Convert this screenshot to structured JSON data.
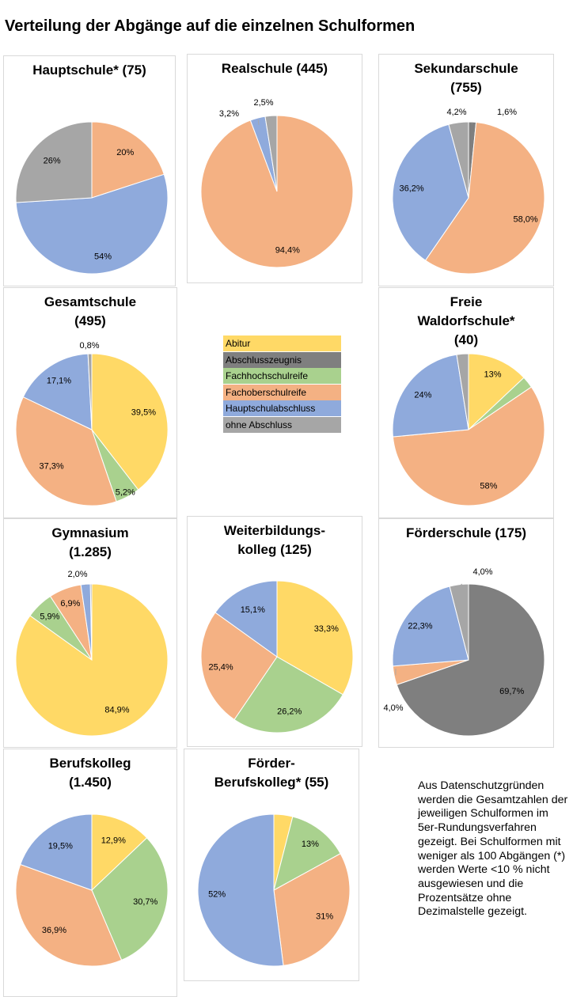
{
  "title": "Verteilung der Abgänge auf die einzelnen Schulformen",
  "colors": {
    "Abitur": "#ffd966",
    "Abschlusszeugnis": "#7f7f7f",
    "Fachhochschulreife": "#a9d18e",
    "Fachoberschulreife": "#f4b183",
    "Hauptschulabschluss": "#8faadc",
    "ohne Abschluss": "#a6a6a6"
  },
  "legend": {
    "items": [
      {
        "label": "Abitur",
        "color": "#ffd966"
      },
      {
        "label": "Abschlusszeugnis",
        "color": "#7f7f7f"
      },
      {
        "label": "Fachhochschulreife",
        "color": "#a9d18e"
      },
      {
        "label": "Fachoberschulreife",
        "color": "#f4b183"
      },
      {
        "label": "Hauptschulabschluss",
        "color": "#8faadc"
      },
      {
        "label": "ohne Abschluss",
        "color": "#a6a6a6"
      }
    ]
  },
  "note": "Aus Datenschutzgründen werden die Gesamtzahlen der jeweiligen Schulformen im 5er-Rundungsverfahren gezeigt. Bei Schulformen mit weniger als 100 Abgängen (*) werden Werte <10 % nicht ausgewiesen und die Prozentsätze ohne Dezimalstelle gezeigt.",
  "chart_data": [
    {
      "type": "pie",
      "title_lines": [
        "Hauptschule*  (75)"
      ],
      "slices": [
        {
          "category": "Fachoberschulreife",
          "value": 20,
          "label": "20%"
        },
        {
          "category": "Hauptschulabschluss",
          "value": 54,
          "label": "54%"
        },
        {
          "category": "ohne Abschluss",
          "value": 26,
          "label": "26%"
        }
      ]
    },
    {
      "type": "pie",
      "title_lines": [
        "Realschule (445)"
      ],
      "slices": [
        {
          "category": "Fachoberschulreife",
          "value": 94.4,
          "label": "94,4%"
        },
        {
          "category": "Hauptschulabschluss",
          "value": 3.2,
          "label": "3,2%"
        },
        {
          "category": "ohne Abschluss",
          "value": 2.5,
          "label": "2,5%"
        }
      ]
    },
    {
      "type": "pie",
      "title_lines": [
        "Sekundarschule",
        "(755)"
      ],
      "slices": [
        {
          "category": "Abschlusszeugnis",
          "value": 1.6,
          "label": "1,6%"
        },
        {
          "category": "Fachoberschulreife",
          "value": 58.0,
          "label": "58,0%"
        },
        {
          "category": "Hauptschulabschluss",
          "value": 36.2,
          "label": "36,2%"
        },
        {
          "category": "ohne Abschluss",
          "value": 4.2,
          "label": "4,2%"
        }
      ]
    },
    {
      "type": "pie",
      "title_lines": [
        "Gesamtschule",
        "(495)"
      ],
      "slices": [
        {
          "category": "Abitur",
          "value": 39.5,
          "label": "39,5%"
        },
        {
          "category": "Fachhochschulreife",
          "value": 5.2,
          "label": "5,2%"
        },
        {
          "category": "Fachoberschulreife",
          "value": 37.3,
          "label": "37,3%"
        },
        {
          "category": "Hauptschulabschluss",
          "value": 17.1,
          "label": "17,1%"
        },
        {
          "category": "ohne Abschluss",
          "value": 0.8,
          "label": "0,8%"
        }
      ]
    },
    {
      "type": "pie",
      "title_lines": [
        "Freie",
        "Waldorfschule*",
        "(40)"
      ],
      "slices": [
        {
          "category": "Abitur",
          "value": 13,
          "label": "13%"
        },
        {
          "category": "Fachhochschulreife",
          "value": 2.5,
          "label": ""
        },
        {
          "category": "Fachoberschulreife",
          "value": 58,
          "label": "58%"
        },
        {
          "category": "Hauptschulabschluss",
          "value": 24,
          "label": "24%"
        },
        {
          "category": "ohne Abschluss",
          "value": 2.5,
          "label": ""
        }
      ]
    },
    {
      "type": "pie",
      "title_lines": [
        "Gymnasium",
        "(1.285)"
      ],
      "slices": [
        {
          "category": "Abitur",
          "value": 84.9,
          "label": "84,9%"
        },
        {
          "category": "Fachhochschulreife",
          "value": 5.9,
          "label": "5,9%"
        },
        {
          "category": "Fachoberschulreife",
          "value": 6.9,
          "label": "6,9%"
        },
        {
          "category": "Hauptschulabschluss",
          "value": 2.0,
          "label": "2,0%"
        },
        {
          "category": "ohne Abschluss",
          "value": 0.3,
          "label": ""
        }
      ]
    },
    {
      "type": "pie",
      "title_lines": [
        "Weiterbildungs-",
        "kolleg (125)"
      ],
      "slices": [
        {
          "category": "Abitur",
          "value": 33.3,
          "label": "33,3%"
        },
        {
          "category": "Fachhochschulreife",
          "value": 26.2,
          "label": "26,2%"
        },
        {
          "category": "Fachoberschulreife",
          "value": 25.4,
          "label": "25,4%"
        },
        {
          "category": "Hauptschulabschluss",
          "value": 15.1,
          "label": "15,1%"
        }
      ]
    },
    {
      "type": "pie",
      "title_lines": [
        "Förderschule (175)"
      ],
      "slices": [
        {
          "category": "Abschlusszeugnis",
          "value": 69.7,
          "label": "69,7%"
        },
        {
          "category": "Fachoberschulreife",
          "value": 4.0,
          "label": "4,0%"
        },
        {
          "category": "Hauptschulabschluss",
          "value": 22.3,
          "label": "22,3%"
        },
        {
          "category": "ohne Abschluss",
          "value": 4.0,
          "label": "4,0%"
        }
      ]
    },
    {
      "type": "pie",
      "title_lines": [
        "Berufskolleg",
        "(1.450)"
      ],
      "slices": [
        {
          "category": "Abitur",
          "value": 12.9,
          "label": "12,9%"
        },
        {
          "category": "Fachhochschulreife",
          "value": 30.7,
          "label": "30,7%"
        },
        {
          "category": "Fachoberschulreife",
          "value": 36.9,
          "label": "36,9%"
        },
        {
          "category": "Hauptschulabschluss",
          "value": 19.5,
          "label": "19,5%"
        }
      ]
    },
    {
      "type": "pie",
      "title_lines": [
        "Förder-",
        "Berufskolleg* (55)"
      ],
      "slices": [
        {
          "category": "Abitur",
          "value": 4,
          "label": ""
        },
        {
          "category": "Fachhochschulreife",
          "value": 13,
          "label": "13%"
        },
        {
          "category": "Fachoberschulreife",
          "value": 31,
          "label": "31%"
        },
        {
          "category": "Hauptschulabschluss",
          "value": 52,
          "label": "52%"
        }
      ]
    }
  ]
}
